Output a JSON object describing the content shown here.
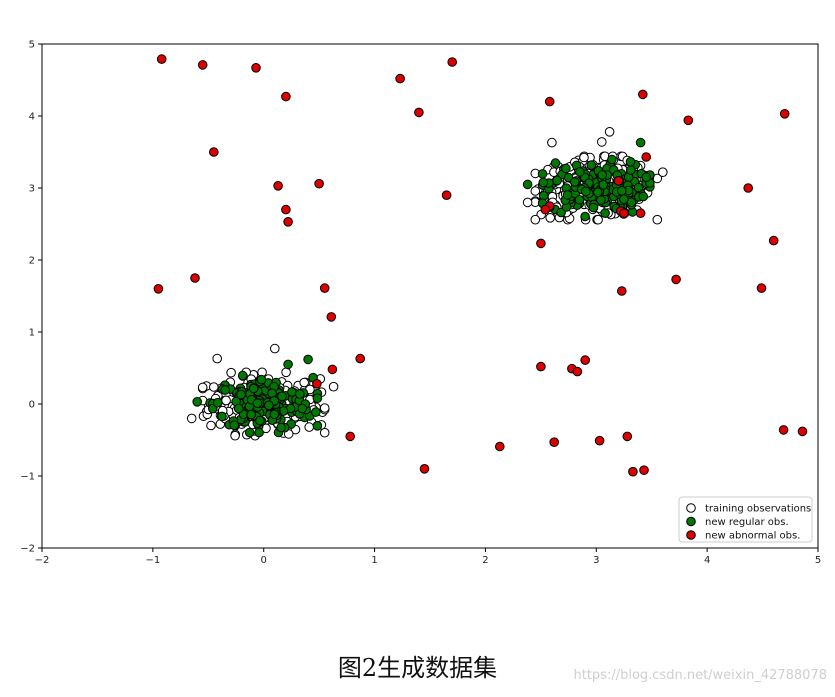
{
  "caption": "图2生成数据集",
  "watermark": "https://blog.csdn.net/weixin_42788078",
  "chart_data": {
    "type": "scatter",
    "title": "",
    "xlabel": "",
    "ylabel": "",
    "xlim": [
      -2,
      5
    ],
    "ylim": [
      -2,
      5
    ],
    "xticks": [
      -2,
      -1,
      0,
      1,
      2,
      3,
      4,
      5
    ],
    "yticks": [
      -2,
      -1,
      0,
      1,
      2,
      3,
      4,
      5
    ],
    "grid": false,
    "legend_position": "bottom-right",
    "series": [
      {
        "name": "training observations",
        "fill": "#ffffff",
        "edge": "#000000",
        "clusters": [
          {
            "center": [
              0.0,
              0.0
            ],
            "spread": [
              0.25,
              0.2
            ],
            "count": 260
          },
          {
            "center": [
              3.0,
              3.0
            ],
            "spread": [
              0.25,
              0.2
            ],
            "count": 260
          }
        ],
        "points": [
          [
            0.1,
            0.77
          ],
          [
            -0.42,
            0.63
          ],
          [
            -0.65,
            -0.2
          ],
          [
            0.63,
            0.24
          ],
          [
            0.52,
            -0.29
          ],
          [
            3.12,
            3.78
          ],
          [
            2.38,
            2.8
          ],
          [
            2.6,
            3.63
          ],
          [
            3.6,
            3.22
          ],
          [
            3.05,
            3.64
          ]
        ]
      },
      {
        "name": "new regular obs.",
        "fill": "#007700",
        "edge": "#000000",
        "clusters": [
          {
            "center": [
              0.0,
              0.0
            ],
            "spread": [
              0.22,
              0.18
            ],
            "count": 160
          },
          {
            "center": [
              3.0,
              3.0
            ],
            "spread": [
              0.22,
              0.18
            ],
            "count": 160
          }
        ],
        "points": [
          [
            0.4,
            0.62
          ],
          [
            -0.6,
            0.03
          ],
          [
            0.22,
            0.55
          ],
          [
            3.4,
            3.63
          ],
          [
            2.38,
            3.05
          ],
          [
            3.45,
            3.15
          ]
        ]
      },
      {
        "name": "new abnormal obs.",
        "fill": "#dd0000",
        "edge": "#000000",
        "points": [
          [
            -0.92,
            4.79
          ],
          [
            -0.55,
            4.71
          ],
          [
            -0.07,
            4.67
          ],
          [
            0.2,
            4.27
          ],
          [
            1.23,
            4.52
          ],
          [
            1.7,
            4.75
          ],
          [
            1.4,
            4.05
          ],
          [
            2.58,
            4.2
          ],
          [
            3.42,
            4.3
          ],
          [
            3.83,
            3.94
          ],
          [
            4.7,
            4.03
          ],
          [
            -0.45,
            3.5
          ],
          [
            0.13,
            3.03
          ],
          [
            0.5,
            3.06
          ],
          [
            1.65,
            2.9
          ],
          [
            0.2,
            2.7
          ],
          [
            0.22,
            2.53
          ],
          [
            4.37,
            3.0
          ],
          [
            2.5,
            2.23
          ],
          [
            2.58,
            2.75
          ],
          [
            2.54,
            2.7
          ],
          [
            3.22,
            2.68
          ],
          [
            3.25,
            2.65
          ],
          [
            3.4,
            2.65
          ],
          [
            3.2,
            3.1
          ],
          [
            3.45,
            3.43
          ],
          [
            4.6,
            2.27
          ],
          [
            3.72,
            1.73
          ],
          [
            3.23,
            1.57
          ],
          [
            4.49,
            1.61
          ],
          [
            -0.95,
            1.6
          ],
          [
            -0.62,
            1.75
          ],
          [
            0.55,
            1.61
          ],
          [
            0.61,
            1.21
          ],
          [
            0.87,
            0.63
          ],
          [
            0.62,
            0.48
          ],
          [
            0.48,
            0.28
          ],
          [
            2.5,
            0.52
          ],
          [
            2.78,
            0.49
          ],
          [
            2.83,
            0.45
          ],
          [
            2.9,
            0.61
          ],
          [
            0.78,
            -0.45
          ],
          [
            2.13,
            -0.59
          ],
          [
            2.62,
            -0.53
          ],
          [
            3.03,
            -0.51
          ],
          [
            3.28,
            -0.45
          ],
          [
            3.33,
            -0.94
          ],
          [
            3.43,
            -0.92
          ],
          [
            4.69,
            -0.36
          ],
          [
            4.86,
            -0.38
          ],
          [
            1.45,
            -0.9
          ]
        ]
      }
    ]
  }
}
